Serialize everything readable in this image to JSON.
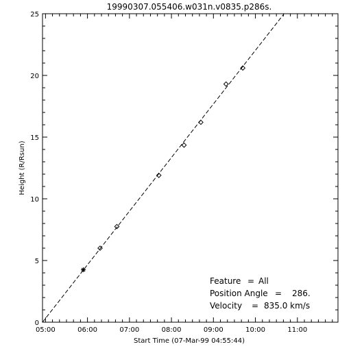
{
  "chart_data": {
    "type": "scatter",
    "title": "19990307.055406.w031n.v0835.p286s.",
    "xlabel": "Start Time (07-Mar-99 04:55:44)",
    "ylabel": "Height (R/Rsun)",
    "x_tick_labels": [
      "05:00",
      "06:00",
      "07:00",
      "08:00",
      "09:00",
      "10:00",
      "11:00"
    ],
    "xlim": [
      "04:55:44",
      "11:58:00"
    ],
    "ylim": [
      0,
      25
    ],
    "y_ticks": [
      0,
      5,
      10,
      15,
      20,
      25
    ],
    "grid": false,
    "series": [
      {
        "marker": "asterisk",
        "points": [
          {
            "x": "05:54:06",
            "y": 4.25
          }
        ]
      },
      {
        "marker": "diamond",
        "points": [
          {
            "x": "06:18:00",
            "y": 6.0
          },
          {
            "x": "06:42:00",
            "y": 7.75
          },
          {
            "x": "07:42:00",
            "y": 11.9
          },
          {
            "x": "08:18:00",
            "y": 14.35
          },
          {
            "x": "08:42:00",
            "y": 16.2
          },
          {
            "x": "09:18:00",
            "y": 19.3
          },
          {
            "x": "09:42:00",
            "y": 20.6
          }
        ]
      }
    ],
    "fit_line": {
      "style": "dashed",
      "from": {
        "x": "04:55:44",
        "y": 0
      },
      "to": {
        "x": "10:41:00",
        "y": 25
      }
    },
    "annotations": [
      {
        "label": "Feature",
        "value": "All"
      },
      {
        "label": "Position Angle",
        "value": "286."
      },
      {
        "label": "Velocity",
        "value": "835.0 km/s"
      }
    ]
  }
}
